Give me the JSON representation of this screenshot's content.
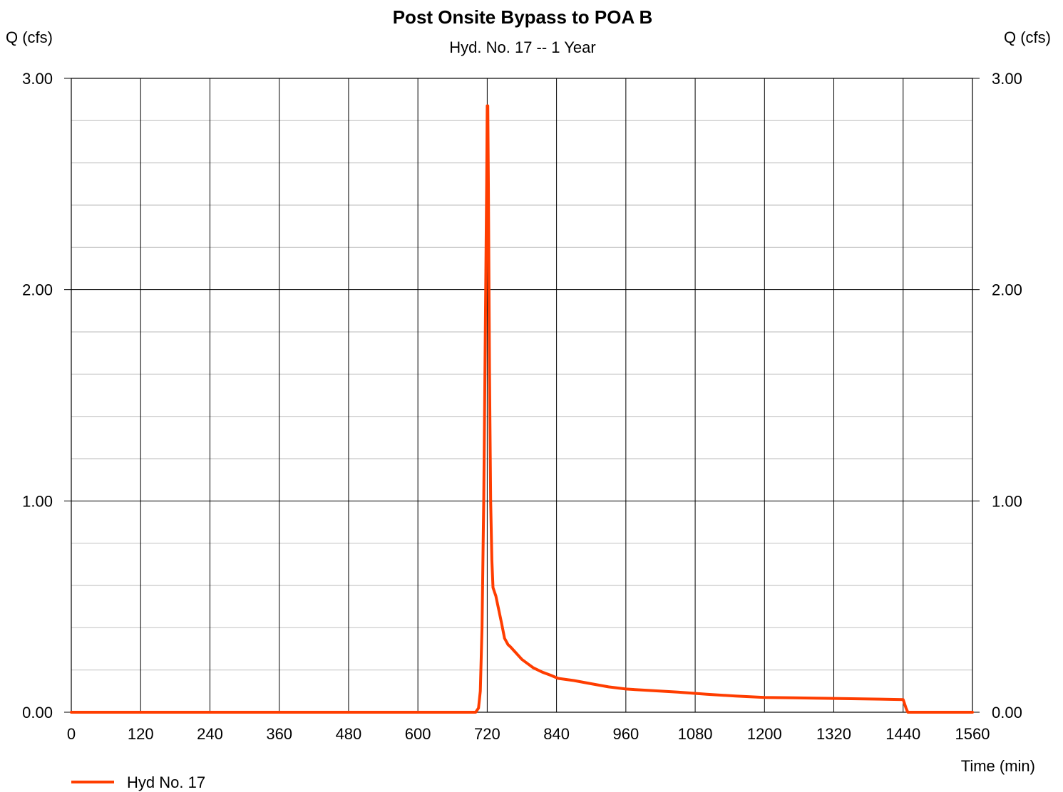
{
  "chart_data": {
    "type": "line",
    "title": "Post Onsite Bypass to POA B",
    "subtitle": "Hyd. No. 17 -- 1 Year",
    "ylabel_left": "Q (cfs)",
    "ylabel_right": "Q (cfs)",
    "xlabel": "Time (min)",
    "xlim": [
      0,
      1560
    ],
    "ylim": [
      0,
      3
    ],
    "x_ticks": [
      "0",
      "120",
      "240",
      "360",
      "480",
      "600",
      "720",
      "840",
      "960",
      "1080",
      "1200",
      "1320",
      "1440",
      "1560"
    ],
    "x_tick_values": [
      0,
      120,
      240,
      360,
      480,
      600,
      720,
      840,
      960,
      1080,
      1200,
      1320,
      1440,
      1560
    ],
    "y_ticks": [
      "0.00",
      "1.00",
      "2.00",
      "3.00"
    ],
    "y_tick_values": [
      0,
      1,
      2,
      3
    ],
    "y_minor_step": 0.2,
    "grid": true,
    "legend_position": "bottom-left",
    "series": [
      {
        "name": "Hyd No. 17",
        "color": "#ff3d00",
        "x": [
          0,
          700,
          705,
          708,
          711,
          714,
          717,
          719,
          720,
          721,
          722,
          724,
          726,
          728,
          730,
          735,
          745,
          750,
          756,
          760,
          770,
          780,
          790,
          800,
          815,
          830,
          843,
          870,
          900,
          930,
          960,
          1000,
          1050,
          1100,
          1150,
          1200,
          1250,
          1300,
          1350,
          1400,
          1440,
          1445,
          1448,
          1560
        ],
        "y": [
          0.0,
          0.0,
          0.02,
          0.1,
          0.4,
          1.0,
          1.9,
          2.5,
          2.87,
          2.87,
          2.5,
          1.6,
          1.0,
          0.72,
          0.59,
          0.55,
          0.42,
          0.35,
          0.32,
          0.31,
          0.28,
          0.25,
          0.23,
          0.21,
          0.19,
          0.175,
          0.16,
          0.15,
          0.135,
          0.12,
          0.11,
          0.103,
          0.095,
          0.085,
          0.077,
          0.07,
          0.068,
          0.066,
          0.064,
          0.062,
          0.06,
          0.02,
          0.0,
          0.0
        ]
      }
    ]
  }
}
